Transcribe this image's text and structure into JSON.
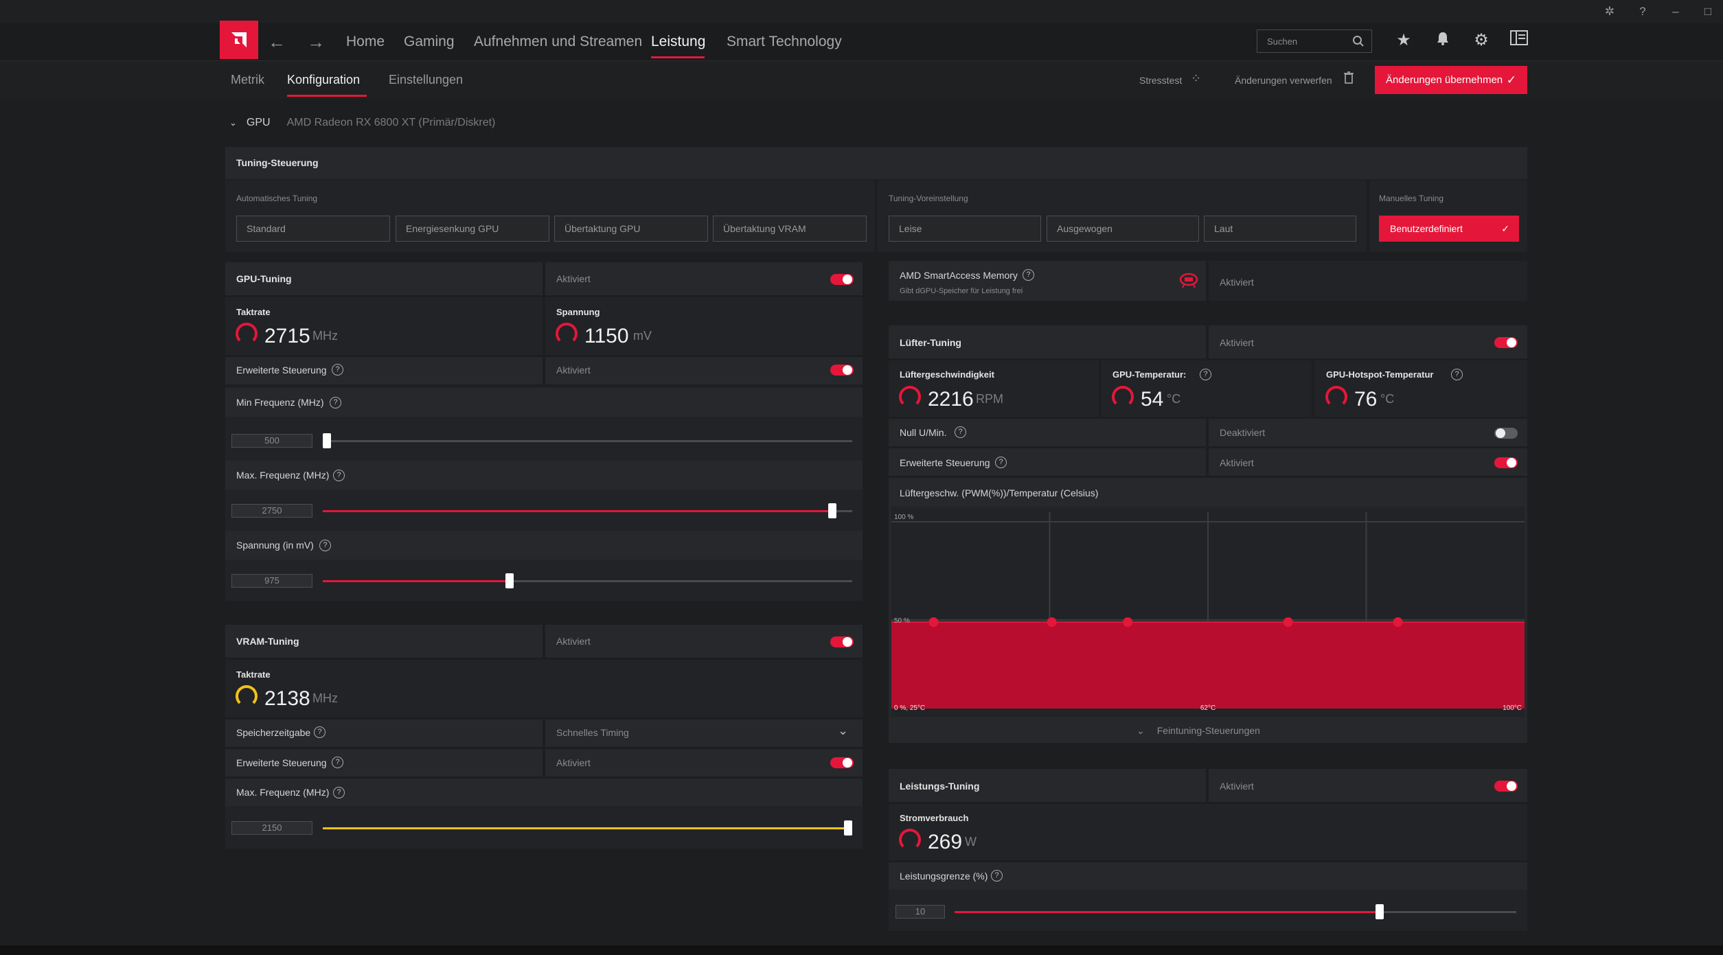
{
  "nav": {
    "home": "Home",
    "gaming": "Gaming",
    "record": "Aufnehmen und Streamen",
    "performance": "Leistung",
    "smart": "Smart Technology",
    "search_placeholder": "Suchen"
  },
  "subnav": {
    "metrics": "Metrik",
    "config": "Konfiguration",
    "settings": "Einstellungen",
    "stresstest": "Stresstest",
    "discard": "Änderungen verwerfen",
    "apply": "Änderungen übernehmen"
  },
  "gpu": {
    "label": "GPU",
    "name": "AMD Radeon RX 6800 XT (Primär/Diskret)"
  },
  "tuning_control": {
    "title": "Tuning-Steuerung",
    "auto_label": "Automatisches Tuning",
    "auto_options": [
      "Standard",
      "Energiesenkung GPU",
      "Übertaktung GPU",
      "Übertaktung VRAM"
    ],
    "preset_label": "Tuning-Voreinstellung",
    "preset_options": [
      "Leise",
      "Ausgewogen",
      "Laut"
    ],
    "manual_label": "Manuelles Tuning",
    "manual_selected": "Benutzerdefiniert"
  },
  "gpu_tuning": {
    "title": "GPU-Tuning",
    "status": "Aktiviert",
    "clock_label": "Taktrate",
    "clock_value": "2715",
    "clock_unit": "MHz",
    "voltage_label": "Spannung",
    "voltage_value": "1150",
    "voltage_unit": "mV",
    "adv_label": "Erweiterte Steuerung",
    "adv_status": "Aktiviert",
    "min_freq_label": "Min Frequenz (MHz)",
    "min_freq_value": "500",
    "min_freq_fraction": 0.0,
    "max_freq_label": "Max. Frequenz (MHz)",
    "max_freq_value": "2750",
    "max_freq_fraction": 0.97,
    "volt_slider_label": "Spannung (in mV)",
    "volt_slider_value": "975",
    "volt_slider_fraction": 0.35
  },
  "vram_tuning": {
    "title": "VRAM-Tuning",
    "status": "Aktiviert",
    "clock_label": "Taktrate",
    "clock_value": "2138",
    "clock_unit": "MHz",
    "timing_label": "Speicherzeitgabe",
    "timing_value": "Schnelles Timing",
    "adv_label": "Erweiterte Steuerung",
    "adv_status": "Aktiviert",
    "max_freq_label": "Max. Frequenz (MHz)",
    "max_freq_value": "2150",
    "max_freq_fraction": 1.0
  },
  "sam": {
    "title": "AMD SmartAccess Memory",
    "subtitle": "Gibt dGPU-Speicher für Leistung frei",
    "status": "Aktiviert"
  },
  "fan_tuning": {
    "title": "Lüfter-Tuning",
    "status": "Aktiviert",
    "speed_label": "Lüftergeschwindigkeit",
    "speed_value": "2216",
    "speed_unit": "RPM",
    "temp_label": "GPU-Temperatur:",
    "temp_value": "54",
    "temp_unit": "°C",
    "hotspot_label": "GPU-Hotspot-Temperatur",
    "hotspot_value": "76",
    "hotspot_unit": "°C",
    "zero_rpm_label": "Null U/Min.",
    "zero_rpm_status": "Deaktiviert",
    "adv_label": "Erweiterte Steuerung",
    "adv_status": "Aktiviert",
    "curve_label": "Lüftergeschw. (PWM(%))/Temperatur (Celsius)",
    "fine_tune": "Feintuning-Steuerungen"
  },
  "chart_data": {
    "type": "area",
    "y_tick_labels": [
      "100 %",
      "50 %"
    ],
    "x_tick_labels": [
      "0 %, 25°C",
      "62°C",
      "100°C"
    ],
    "x": [
      30,
      44,
      53,
      72,
      85
    ],
    "values": [
      44,
      44,
      44,
      44,
      44
    ],
    "ylim": [
      0,
      100
    ],
    "xlim": [
      25,
      100
    ],
    "grid": true
  },
  "power_tuning": {
    "title": "Leistungs-Tuning",
    "status": "Aktiviert",
    "power_label": "Stromverbrauch",
    "power_value": "269",
    "power_unit": "W",
    "limit_label": "Leistungsgrenze (%)",
    "limit_value": "10",
    "limit_fraction": 0.76
  },
  "colors": {
    "accent": "#e4173a",
    "vram_accent": "#f2c21b"
  }
}
